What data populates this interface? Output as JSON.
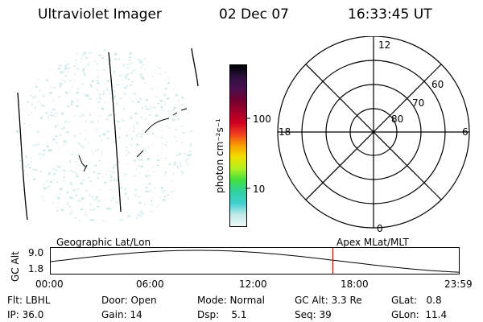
{
  "header": {
    "instrument": "Ultraviolet Imager",
    "date": "02 Dec 07",
    "time": "16:33:45 UT"
  },
  "colorbar": {
    "unit_label": "photon cm⁻²s⁻¹",
    "ticks": [
      "100",
      "10"
    ],
    "colors": [
      "#000000",
      "#2a0f3c",
      "#4a1050",
      "#700030",
      "#a0002a",
      "#d00020",
      "#f04020",
      "#f8a000",
      "#f0e000",
      "#b0f020",
      "#40e040",
      "#30d0a0",
      "#40d0d0",
      "#c0e8e8",
      "#f0f8f8"
    ]
  },
  "polar_plot": {
    "hour_labels": [
      "12",
      "18",
      "6",
      "0"
    ],
    "lat_labels": [
      "60",
      "70",
      "80"
    ]
  },
  "timeline": {
    "left_label": "Geographic Lat/Lon",
    "right_label": "Apex MLat/MLT",
    "y_axis_label": "GC Alt",
    "y_ticks": [
      "9.0",
      "1.8"
    ],
    "x_ticks": [
      "00:00",
      "06:00",
      "12:00",
      "18:00",
      "23:59"
    ],
    "current_time_fraction": 0.69,
    "marker_color": "#cc0000"
  },
  "info": {
    "row1": [
      "Flt: LBHL",
      "Door: Open",
      "Mode: Normal",
      "GC Alt: 3.3 Re",
      "GLat:   0.8"
    ],
    "row2": [
      "IP: 36.0",
      "Gain: 14",
      "Dsp:    5.1",
      "Seq: 39",
      "GLon:  11.4"
    ]
  }
}
